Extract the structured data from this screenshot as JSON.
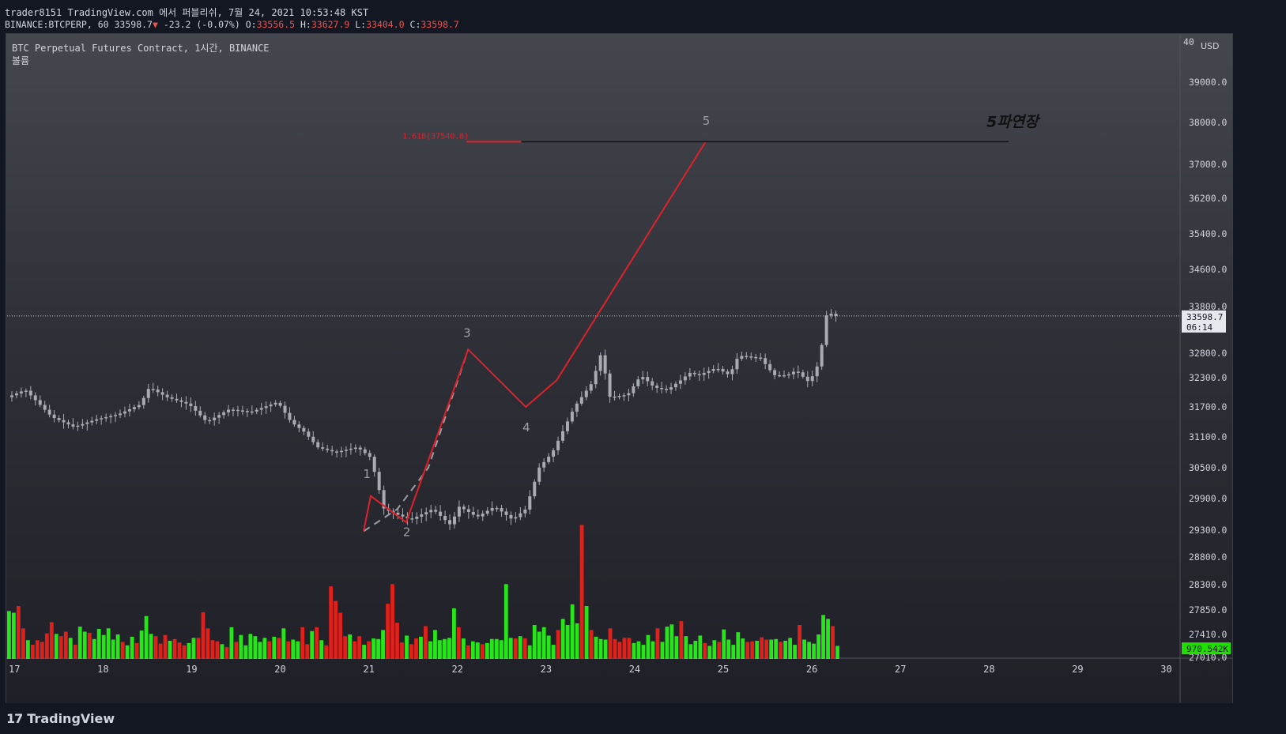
{
  "header": {
    "publish_line": "trader8151 TradingView.com 에서 퍼블리쉬, 7월 24, 2021 10:53:48 KST",
    "symbol": "BINANCE:BTCPERP, 60",
    "last": "33598.7",
    "arrow": "▼",
    "change": "-23.2 (-0.07%)",
    "o_label": "O:",
    "o_value": "33556.5",
    "h_label": "H:",
    "h_value": "33627.9",
    "l_label": "L:",
    "l_value": "33404.0",
    "c_label": "C:",
    "c_value": "33598.7"
  },
  "legend": {
    "title": "BTC Perpetual Futures Contract, 1시간, BINANCE",
    "volume_label": "볼륨"
  },
  "footer": {
    "brand": "TradingView",
    "logo": "17"
  },
  "colors": {
    "up": "#26e61a",
    "down": "#e0201a",
    "candle": "#a9abb2",
    "wave": "#e0202a",
    "wave_dashed": "#9c9ea6",
    "fib": "#e0202a",
    "fib_line": "#111111",
    "axis_text": "#d1d4dc",
    "volume_badge": "#22dd00",
    "price_badge": "#e6e8ee"
  },
  "chart_data": {
    "type": "candlestick",
    "x_tick_labels": [
      "17",
      "18",
      "19",
      "20",
      "21",
      "22",
      "23",
      "24",
      "25",
      "26",
      "27",
      "28",
      "29",
      "30"
    ],
    "x_tick_days": [
      17,
      18,
      19,
      20,
      21,
      22,
      23,
      24,
      25,
      26,
      27,
      28,
      29,
      30
    ],
    "xlim": [
      17.0,
      30.23
    ],
    "y_tick_labels": [
      "40",
      "39000.0",
      "38000.0",
      "37000.0",
      "36200.0",
      "35400.0",
      "34600.0",
      "33800.0",
      "32800.0",
      "32300.0",
      "31700.0",
      "31100.0",
      "30500.0",
      "29900.0",
      "29300.0",
      "28800.0",
      "28300.0",
      "27850.0",
      "27410.0",
      "27010.0"
    ],
    "y_axis_unit": "USD",
    "last_price": "33598.7",
    "countdown": "06:14",
    "volume_value": "970.542K",
    "price_anchors": [
      [
        39000,
        103
      ],
      [
        38000,
        154
      ],
      [
        37000,
        207
      ],
      [
        36200,
        250
      ],
      [
        35400,
        295
      ],
      [
        34600,
        340
      ],
      [
        33800,
        387
      ],
      [
        32800,
        446
      ],
      [
        32300,
        477
      ],
      [
        31700,
        514
      ],
      [
        31100,
        552
      ],
      [
        30500,
        591
      ],
      [
        29900,
        630
      ],
      [
        29300,
        670
      ],
      [
        28800,
        704
      ],
      [
        28300,
        739
      ],
      [
        27850,
        771
      ],
      [
        27410,
        802
      ],
      [
        27010,
        831
      ]
    ],
    "price_path": [
      [
        16.95,
        31900
      ],
      [
        17.15,
        32050
      ],
      [
        17.45,
        31500
      ],
      [
        17.7,
        31300
      ],
      [
        17.95,
        31450
      ],
      [
        18.2,
        31550
      ],
      [
        18.45,
        31750
      ],
      [
        18.55,
        32100
      ],
      [
        18.75,
        31900
      ],
      [
        19.0,
        31750
      ],
      [
        19.2,
        31400
      ],
      [
        19.45,
        31650
      ],
      [
        19.7,
        31600
      ],
      [
        20.0,
        31800
      ],
      [
        20.15,
        31400
      ],
      [
        20.3,
        31200
      ],
      [
        20.45,
        30900
      ],
      [
        20.65,
        30800
      ],
      [
        20.9,
        30900
      ],
      [
        21.05,
        30700
      ],
      [
        21.2,
        29700
      ],
      [
        21.5,
        29500
      ],
      [
        21.75,
        29700
      ],
      [
        21.95,
        29400
      ],
      [
        22.05,
        29750
      ],
      [
        22.25,
        29550
      ],
      [
        22.45,
        29750
      ],
      [
        22.65,
        29500
      ],
      [
        22.8,
        29700
      ],
      [
        22.95,
        30500
      ],
      [
        23.1,
        30800
      ],
      [
        23.2,
        31150
      ],
      [
        23.35,
        31700
      ],
      [
        23.55,
        32200
      ],
      [
        23.65,
        32800
      ],
      [
        23.75,
        31900
      ],
      [
        23.95,
        31950
      ],
      [
        24.1,
        32350
      ],
      [
        24.25,
        32100
      ],
      [
        24.4,
        32050
      ],
      [
        24.55,
        32250
      ],
      [
        24.65,
        32400
      ],
      [
        24.75,
        32350
      ],
      [
        24.95,
        32500
      ],
      [
        25.1,
        32350
      ],
      [
        25.2,
        32750
      ],
      [
        25.45,
        32700
      ],
      [
        25.6,
        32350
      ],
      [
        25.75,
        32350
      ],
      [
        25.85,
        32450
      ],
      [
        26.0,
        32200
      ],
      [
        26.12,
        32650
      ],
      [
        26.18,
        33600
      ],
      [
        26.25,
        33650
      ],
      [
        26.3,
        33598
      ]
    ],
    "volume_bars": [
      [
        27830,
        "up"
      ],
      [
        27800,
        "up"
      ],
      [
        27920,
        "down"
      ],
      [
        27520,
        "down"
      ],
      [
        27310,
        "up"
      ],
      [
        27230,
        "down"
      ],
      [
        27310,
        "down"
      ],
      [
        27280,
        "down"
      ],
      [
        27430,
        "down"
      ],
      [
        27630,
        "down"
      ],
      [
        27420,
        "up"
      ],
      [
        27380,
        "down"
      ],
      [
        27460,
        "down"
      ],
      [
        27350,
        "up"
      ],
      [
        27230,
        "down"
      ],
      [
        27550,
        "up"
      ],
      [
        27460,
        "up"
      ],
      [
        27440,
        "down"
      ],
      [
        27330,
        "up"
      ],
      [
        27510,
        "up"
      ],
      [
        27400,
        "up"
      ],
      [
        27520,
        "up"
      ],
      [
        27320,
        "up"
      ],
      [
        27410,
        "up"
      ],
      [
        27280,
        "down"
      ],
      [
        27220,
        "up"
      ],
      [
        27370,
        "up"
      ],
      [
        27260,
        "down"
      ],
      [
        27480,
        "up"
      ],
      [
        27740,
        "up"
      ],
      [
        27420,
        "up"
      ],
      [
        27380,
        "down"
      ],
      [
        27250,
        "down"
      ],
      [
        27400,
        "down"
      ],
      [
        27300,
        "up"
      ],
      [
        27330,
        "down"
      ],
      [
        27270,
        "down"
      ],
      [
        27220,
        "down"
      ],
      [
        27260,
        "up"
      ],
      [
        27350,
        "up"
      ],
      [
        27350,
        "down"
      ],
      [
        27810,
        "down"
      ],
      [
        27520,
        "down"
      ],
      [
        27310,
        "down"
      ],
      [
        27290,
        "down"
      ],
      [
        27240,
        "up"
      ],
      [
        27190,
        "down"
      ],
      [
        27540,
        "up"
      ],
      [
        27280,
        "down"
      ],
      [
        27400,
        "up"
      ],
      [
        27220,
        "up"
      ],
      [
        27420,
        "up"
      ],
      [
        27380,
        "up"
      ],
      [
        27280,
        "up"
      ],
      [
        27350,
        "up"
      ],
      [
        27290,
        "down"
      ],
      [
        27370,
        "up"
      ],
      [
        27350,
        "down"
      ],
      [
        27520,
        "up"
      ],
      [
        27290,
        "down"
      ],
      [
        27320,
        "up"
      ],
      [
        27290,
        "up"
      ],
      [
        27540,
        "down"
      ],
      [
        27240,
        "down"
      ],
      [
        27470,
        "up"
      ],
      [
        27540,
        "down"
      ],
      [
        27310,
        "up"
      ],
      [
        27220,
        "down"
      ],
      [
        28270,
        "down"
      ],
      [
        28010,
        "down"
      ],
      [
        27800,
        "down"
      ],
      [
        27380,
        "down"
      ],
      [
        27410,
        "up"
      ],
      [
        27290,
        "down"
      ],
      [
        27380,
        "down"
      ],
      [
        27230,
        "up"
      ],
      [
        27290,
        "down"
      ],
      [
        27340,
        "up"
      ],
      [
        27330,
        "up"
      ],
      [
        27490,
        "up"
      ],
      [
        27960,
        "down"
      ],
      [
        28310,
        "down"
      ],
      [
        27620,
        "down"
      ],
      [
        27270,
        "down"
      ],
      [
        27390,
        "up"
      ],
      [
        27240,
        "down"
      ],
      [
        27340,
        "down"
      ],
      [
        27370,
        "up"
      ],
      [
        27560,
        "down"
      ],
      [
        27290,
        "up"
      ],
      [
        27490,
        "up"
      ],
      [
        27310,
        "up"
      ],
      [
        27330,
        "up"
      ],
      [
        27350,
        "up"
      ],
      [
        27880,
        "up"
      ],
      [
        27540,
        "down"
      ],
      [
        27340,
        "up"
      ],
      [
        27220,
        "down"
      ],
      [
        27290,
        "up"
      ],
      [
        27270,
        "up"
      ],
      [
        27240,
        "down"
      ],
      [
        27260,
        "up"
      ],
      [
        27330,
        "up"
      ],
      [
        27330,
        "up"
      ],
      [
        27310,
        "up"
      ],
      [
        28310,
        "up"
      ],
      [
        27350,
        "up"
      ],
      [
        27340,
        "down"
      ],
      [
        27380,
        "up"
      ],
      [
        27340,
        "down"
      ],
      [
        27220,
        "up"
      ],
      [
        27580,
        "up"
      ],
      [
        27460,
        "up"
      ],
      [
        27540,
        "up"
      ],
      [
        27390,
        "up"
      ],
      [
        27230,
        "up"
      ],
      [
        27490,
        "down"
      ],
      [
        27690,
        "up"
      ],
      [
        27580,
        "up"
      ],
      [
        27950,
        "up"
      ],
      [
        27610,
        "up"
      ],
      [
        29400,
        "down"
      ],
      [
        27920,
        "up"
      ],
      [
        27490,
        "down"
      ],
      [
        27370,
        "up"
      ],
      [
        27330,
        "up"
      ],
      [
        27320,
        "up"
      ],
      [
        27520,
        "down"
      ],
      [
        27330,
        "down"
      ],
      [
        27280,
        "down"
      ],
      [
        27350,
        "down"
      ],
      [
        27350,
        "down"
      ],
      [
        27260,
        "up"
      ],
      [
        27290,
        "up"
      ],
      [
        27230,
        "up"
      ],
      [
        27400,
        "up"
      ],
      [
        27290,
        "up"
      ],
      [
        27520,
        "down"
      ],
      [
        27280,
        "up"
      ],
      [
        27550,
        "up"
      ],
      [
        27590,
        "up"
      ],
      [
        27380,
        "up"
      ],
      [
        27650,
        "down"
      ],
      [
        27380,
        "up"
      ],
      [
        27240,
        "up"
      ],
      [
        27300,
        "up"
      ],
      [
        27390,
        "up"
      ],
      [
        27260,
        "down"
      ],
      [
        27210,
        "up"
      ],
      [
        27310,
        "up"
      ],
      [
        27280,
        "down"
      ],
      [
        27500,
        "up"
      ],
      [
        27320,
        "up"
      ],
      [
        27230,
        "up"
      ],
      [
        27450,
        "up"
      ],
      [
        27340,
        "up"
      ],
      [
        27280,
        "down"
      ],
      [
        27290,
        "down"
      ],
      [
        27300,
        "up"
      ],
      [
        27360,
        "down"
      ],
      [
        27320,
        "down"
      ],
      [
        27320,
        "up"
      ],
      [
        27330,
        "up"
      ],
      [
        27280,
        "down"
      ],
      [
        27300,
        "up"
      ],
      [
        27350,
        "up"
      ],
      [
        27230,
        "up"
      ],
      [
        27580,
        "down"
      ],
      [
        27320,
        "up"
      ],
      [
        27280,
        "up"
      ],
      [
        27250,
        "up"
      ],
      [
        27410,
        "up"
      ],
      [
        27760,
        "up"
      ],
      [
        27690,
        "up"
      ],
      [
        27560,
        "down"
      ],
      [
        27210,
        "up"
      ]
    ],
    "elliott_wave": {
      "labels": [
        "1",
        "2",
        "3",
        "4",
        "5"
      ],
      "solid_points": [
        [
          20.97,
          29280
        ],
        [
          21.05,
          29950
        ],
        [
          21.45,
          29450
        ],
        [
          22.15,
          32880
        ],
        [
          22.8,
          31700
        ],
        [
          23.15,
          32250
        ],
        [
          24.83,
          37540
        ]
      ],
      "dashed_points": [
        [
          20.97,
          29280
        ],
        [
          21.35,
          29700
        ],
        [
          21.7,
          30500
        ],
        [
          22.15,
          32880
        ]
      ],
      "label_points": [
        [
          21.0,
          30300
        ],
        [
          21.45,
          29190
        ],
        [
          22.13,
          33150
        ],
        [
          22.8,
          31210
        ],
        [
          24.83,
          37940
        ]
      ]
    },
    "fib_level": {
      "label": "1.618(37540.8)",
      "price": 37540,
      "red_segment": [
        22.13,
        22.75
      ],
      "black_segment": [
        22.75,
        28.25
      ]
    },
    "annotation": {
      "text": "5파연장",
      "price": 37900,
      "x": 28.0
    }
  }
}
